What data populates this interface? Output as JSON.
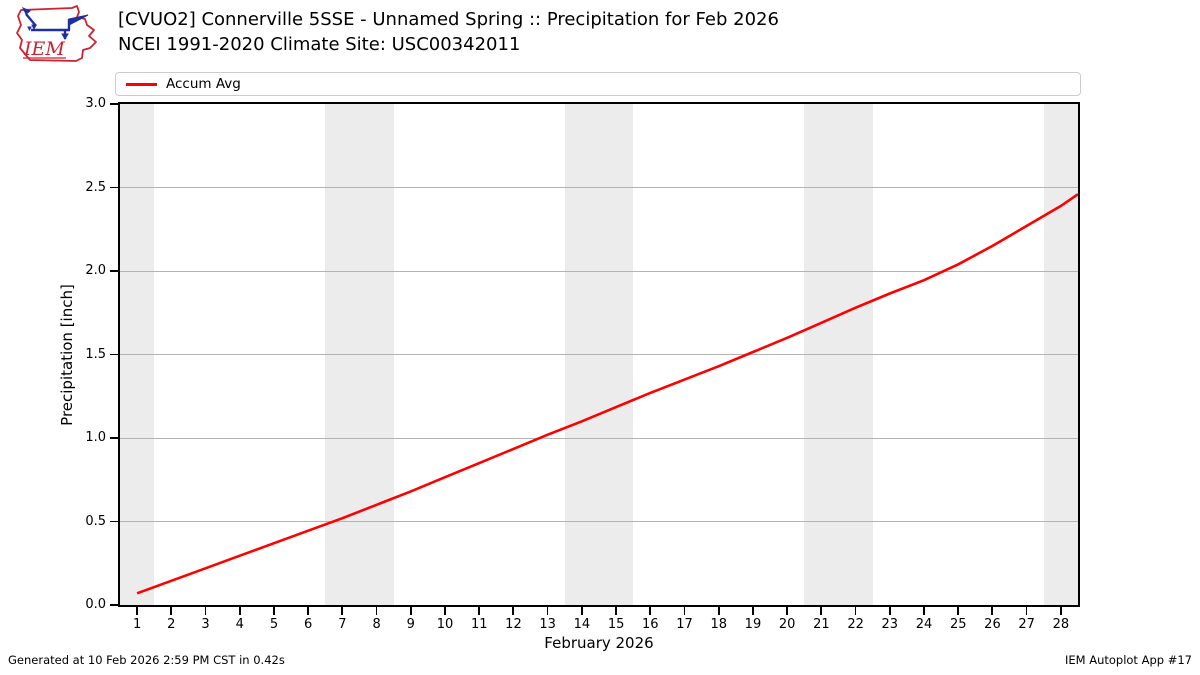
{
  "chart_data": {
    "type": "line",
    "title": "[CVUO2] Connerville 5SSE - Unnamed Spring :: Precipitation for Feb 2026",
    "subtitle": "NCEI 1991-2020 Climate Site: USC00342011",
    "xlabel": "February 2026",
    "ylabel": "Precipitation [inch]",
    "xlim": [
      0.5,
      28.5
    ],
    "ylim": [
      0.0,
      3.0
    ],
    "xticks": [
      1,
      2,
      3,
      4,
      5,
      6,
      7,
      8,
      9,
      10,
      11,
      12,
      13,
      14,
      15,
      16,
      17,
      18,
      19,
      20,
      21,
      22,
      23,
      24,
      25,
      26,
      27,
      28
    ],
    "yticks": [
      0.0,
      0.5,
      1.0,
      1.5,
      2.0,
      2.5,
      3.0
    ],
    "ytick_labels": [
      "0.0",
      "0.5",
      "1.0",
      "1.5",
      "2.0",
      "2.5",
      "3.0"
    ],
    "grid": "horizontal-only",
    "legend_position": "top",
    "weekend_shading_days": [
      [
        0.5,
        1.5
      ],
      [
        6.5,
        8.5
      ],
      [
        13.5,
        15.5
      ],
      [
        20.5,
        22.5
      ],
      [
        27.5,
        28.5
      ]
    ],
    "series": [
      {
        "name": "Accum Avg",
        "color": "#ff0000",
        "x": [
          1,
          2,
          3,
          4,
          5,
          6,
          7,
          8,
          9,
          10,
          11,
          12,
          13,
          14,
          15,
          16,
          17,
          18,
          19,
          20,
          21,
          22,
          23,
          24,
          25,
          26,
          27,
          28,
          28.5
        ],
        "values": [
          0.07,
          0.145,
          0.22,
          0.295,
          0.37,
          0.445,
          0.52,
          0.6,
          0.68,
          0.765,
          0.85,
          0.935,
          1.02,
          1.1,
          1.185,
          1.27,
          1.35,
          1.43,
          1.515,
          1.6,
          1.69,
          1.78,
          1.865,
          1.945,
          2.04,
          2.15,
          2.27,
          2.39,
          2.46
        ]
      }
    ]
  },
  "logo": {
    "text": "IEM"
  },
  "footer": {
    "generated": "Generated at 10 Feb 2026 2:59 PM CST in 0.42s",
    "app": "IEM Autoplot App #17"
  },
  "colors": {
    "line": "#ff0000",
    "weekend_band": "#ececec",
    "gridline": "#b3b3b3",
    "spine": "#000000",
    "legend_border": "#cccccc",
    "background": "#ffffff",
    "logo_red": "#cc2231",
    "logo_blue": "#1f2fa0"
  }
}
